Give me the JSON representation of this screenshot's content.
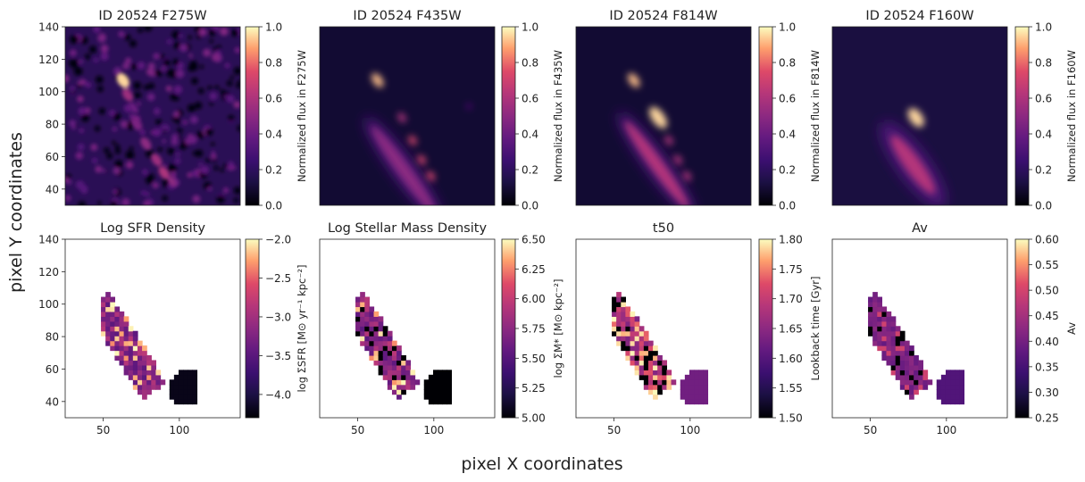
{
  "figure": {
    "xlabel": "pixel X coordinates",
    "ylabel": "pixel Y coordinates",
    "galaxy_id": "20524"
  },
  "chart_data": [
    {
      "type": "heatmap",
      "title": "ID 20524 F275W",
      "cbar_label": "Normalized flux in F275W",
      "cmap": "magma",
      "clim": [
        0.0,
        1.0
      ],
      "cbar_ticks": [
        0.0,
        0.2,
        0.4,
        0.6,
        0.8,
        1.0
      ],
      "cbar_ticklabels": [
        "0.0",
        "0.2",
        "0.4",
        "0.6",
        "0.8",
        "1.0"
      ],
      "xlim": [
        25,
        140
      ],
      "ylim": [
        30,
        140
      ],
      "yticks": [
        40,
        60,
        80,
        100,
        120,
        140
      ],
      "xticks": [],
      "image": "noisy flux map, bright knots along diagonal, peak near (63,107)"
    },
    {
      "type": "heatmap",
      "title": "ID 20524 F435W",
      "cbar_label": "Normalized flux in F435W",
      "cmap": "magma",
      "clim": [
        0.0,
        1.0
      ],
      "cbar_ticks": [
        0.0,
        0.2,
        0.4,
        0.6,
        0.8,
        1.0
      ],
      "cbar_ticklabels": [
        "0.0",
        "0.2",
        "0.4",
        "0.6",
        "0.8",
        "1.0"
      ],
      "xlim": [
        25,
        140
      ],
      "ylim": [
        30,
        140
      ],
      "yticks": [],
      "xticks": [],
      "image": "elongated diagonal galaxy, knots near (63,107) and along disk"
    },
    {
      "type": "heatmap",
      "title": "ID 20524 F814W",
      "cbar_label": "Normalized flux in F814W",
      "cmap": "magma",
      "clim": [
        0.0,
        1.0
      ],
      "cbar_ticks": [
        0.0,
        0.2,
        0.4,
        0.6,
        0.8,
        1.0
      ],
      "cbar_ticklabels": [
        "0.0",
        "0.2",
        "0.4",
        "0.6",
        "0.8",
        "1.0"
      ],
      "xlim": [
        25,
        140
      ],
      "ylim": [
        30,
        140
      ],
      "yticks": [],
      "xticks": [],
      "image": "smooth diagonal disk, bright center near (80,84)"
    },
    {
      "type": "heatmap",
      "title": "ID 20524 F160W",
      "cbar_label": "Normalized flux in F160W",
      "cmap": "magma",
      "clim": [
        0.0,
        1.0
      ],
      "cbar_ticks": [
        0.0,
        0.2,
        0.4,
        0.6,
        0.8,
        1.0
      ],
      "cbar_ticklabels": [
        "0.0",
        "0.2",
        "0.4",
        "0.6",
        "0.8",
        "1.0"
      ],
      "xlim": [
        25,
        140
      ],
      "ylim": [
        30,
        140
      ],
      "yticks": [],
      "xticks": [],
      "image": "compact diffuse disk, bright center near (80,84)"
    },
    {
      "type": "heatmap",
      "title": "Log SFR Density",
      "cbar_label": "log ΣSFR [M⊙ yr⁻¹ kpc⁻²]",
      "cmap": "magma",
      "clim": [
        -4.3,
        -2.0
      ],
      "cbar_ticks": [
        -4.0,
        -3.5,
        -3.0,
        -2.5,
        -2.0
      ],
      "cbar_ticklabels": [
        "−4.0",
        "−3.5",
        "−3.0",
        "−2.5",
        "−2.0"
      ],
      "xlim": [
        25,
        140
      ],
      "ylim": [
        30,
        140
      ],
      "yticks": [
        40,
        60,
        80,
        100,
        120,
        140
      ],
      "xticks": [
        50,
        100
      ],
      "image": "pixel map within galaxy mask, blob near (104,48) at minimum"
    },
    {
      "type": "heatmap",
      "title": "Log Stellar Mass Density",
      "cbar_label": "log ΣM* [M⊙ kpc⁻²]",
      "cmap": "magma",
      "clim": [
        5.0,
        6.5
      ],
      "cbar_ticks": [
        5.0,
        5.25,
        5.5,
        5.75,
        6.0,
        6.25,
        6.5
      ],
      "cbar_ticklabels": [
        "5.00",
        "5.25",
        "5.50",
        "5.75",
        "6.00",
        "6.25",
        "6.50"
      ],
      "xlim": [
        25,
        140
      ],
      "ylim": [
        30,
        140
      ],
      "yticks": [],
      "xticks": [
        50,
        100
      ],
      "image": "pixel map within galaxy mask, blob near (104,48) at minimum"
    },
    {
      "type": "heatmap",
      "title": "t50",
      "cbar_label": "Lookback time [Gyr]",
      "cmap": "magma",
      "clim": [
        1.5,
        1.8
      ],
      "cbar_ticks": [
        1.5,
        1.55,
        1.6,
        1.65,
        1.7,
        1.75,
        1.8
      ],
      "cbar_ticklabels": [
        "1.50",
        "1.55",
        "1.60",
        "1.65",
        "1.70",
        "1.75",
        "1.80"
      ],
      "xlim": [
        25,
        140
      ],
      "ylim": [
        30,
        140
      ],
      "yticks": [],
      "xticks": [
        50,
        100
      ],
      "image": "pixel map within galaxy mask, mixed values"
    },
    {
      "type": "heatmap",
      "title": "Av",
      "cbar_label": "Av",
      "cmap": "magma",
      "clim": [
        0.25,
        0.6
      ],
      "cbar_ticks": [
        0.25,
        0.3,
        0.35,
        0.4,
        0.45,
        0.5,
        0.55,
        0.6
      ],
      "cbar_ticklabels": [
        "0.25",
        "0.30",
        "0.35",
        "0.40",
        "0.45",
        "0.50",
        "0.55",
        "0.60"
      ],
      "xlim": [
        25,
        140
      ],
      "ylim": [
        30,
        140
      ],
      "yticks": [],
      "xticks": [
        50,
        100
      ],
      "image": "pixel map within galaxy mask, mostly ~0.35"
    }
  ]
}
